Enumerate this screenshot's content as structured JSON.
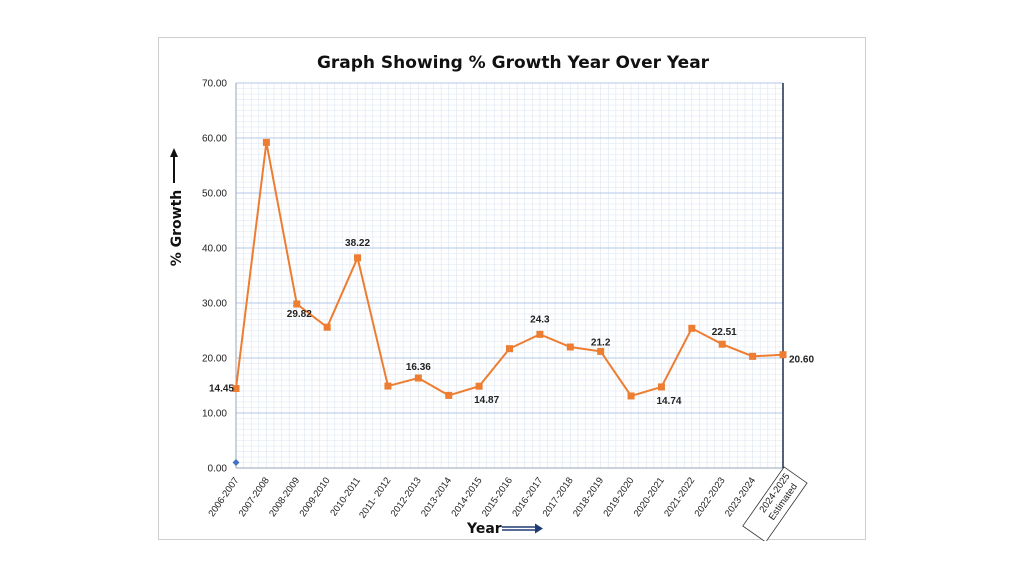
{
  "chart_data": {
    "type": "line",
    "title": "Graph Showing % Growth Year Over Year",
    "xlabel": "Year",
    "ylabel": "% Growth",
    "ylim": [
      0,
      70
    ],
    "yticks": [
      "0.00",
      "10.00",
      "20.00",
      "30.00",
      "40.00",
      "50.00",
      "60.00",
      "70.00"
    ],
    "grid": true,
    "categories": [
      "2006-2007",
      "2007-2008",
      "2008-2009",
      "2009-2010",
      "2010-2011",
      "2011- 2012",
      "2012-2013",
      "2013-2014",
      "2014-2015",
      "2015-2016",
      "2016-2017",
      "2017-2018",
      "2018-2019",
      "2019-2020",
      "2020-2021",
      "2021-2022",
      "2022-2023",
      "2023-2024",
      "2024-2025 Estimated"
    ],
    "series": [
      {
        "color": "#ed7d31",
        "values": [
          14.45,
          59.2,
          29.82,
          25.6,
          38.22,
          14.9,
          16.36,
          13.2,
          14.87,
          21.7,
          24.3,
          22.0,
          21.2,
          13.1,
          14.74,
          25.4,
          22.51,
          20.3,
          20.6
        ],
        "labels": [
          "14.45",
          "",
          "29.82",
          "",
          "38.22",
          "",
          "16.36",
          "",
          "14.87",
          "",
          "24.3",
          "",
          "21.2",
          "",
          "14.74",
          "",
          "22.51",
          "",
          "20.60"
        ]
      }
    ],
    "extra_point": {
      "x": "2006-2007",
      "y": 1.0,
      "color": "#4472c4"
    }
  }
}
